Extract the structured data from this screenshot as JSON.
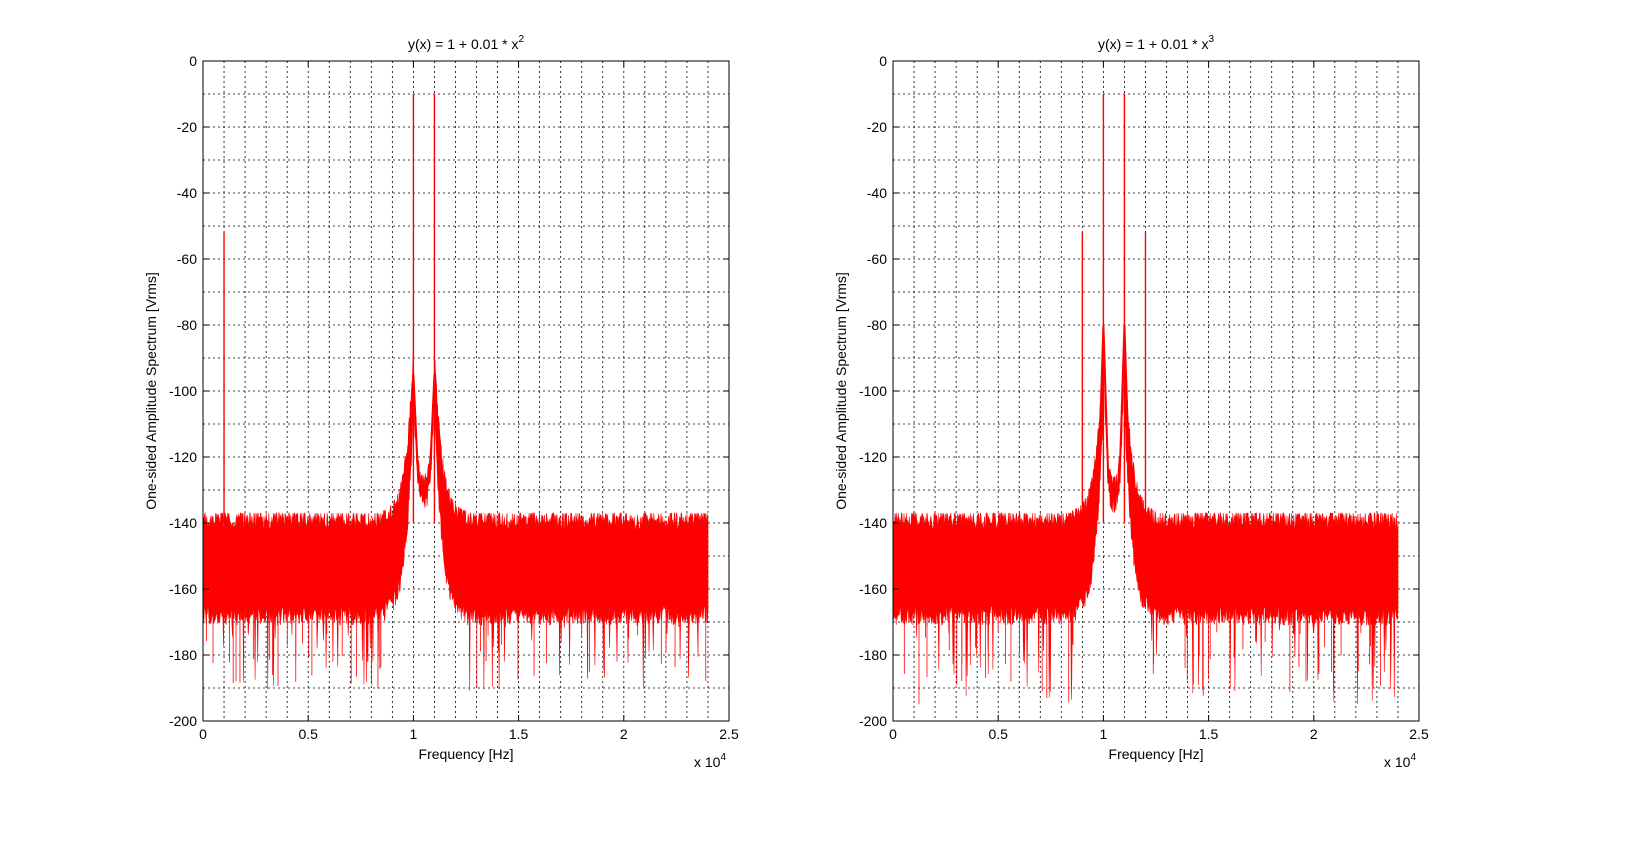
{
  "chart_data": [
    {
      "type": "line",
      "title": "y(x) = 1 + 0.01 * x",
      "title_superscript": "2",
      "xlabel": "Frequency [Hz]",
      "ylabel": "One-sided Amplitude Spectrum [Vrms]",
      "x_exponent_label": "x 10",
      "x_exponent_power": "4",
      "xlim": [
        0,
        2.5
      ],
      "ylim": [
        -200,
        0
      ],
      "x_ticks": [
        0,
        0.5,
        1,
        1.5,
        2,
        2.5
      ],
      "x_tick_labels": [
        "0",
        "0.5",
        "1",
        "1.5",
        "2",
        "2.5"
      ],
      "y_ticks": [
        0,
        -20,
        -40,
        -60,
        -80,
        -100,
        -120,
        -140,
        -160,
        -180,
        -200
      ],
      "y_tick_labels": [
        "0",
        "-20",
        "-40",
        "-60",
        "-80",
        "-100",
        "-120",
        "-140",
        "-160",
        "-180",
        "-200"
      ],
      "grid": true,
      "grid_style": "dotted",
      "line_color": "#ff0000",
      "x_range": [
        0,
        2.4
      ],
      "noise_floor_upper": -140,
      "noise_floor_lower": -165,
      "noise_dips_min": -191,
      "peaks": [
        {
          "x": 0.1,
          "y": -52
        },
        {
          "x": 1.0,
          "y": -10
        },
        {
          "x": 1.1,
          "y": -10
        }
      ],
      "skirt_peaks": [
        {
          "x": 1.0,
          "y": -95
        },
        {
          "x": 1.1,
          "y": -95
        }
      ],
      "valley_between_peaks": {
        "x": 1.05,
        "y": -128
      }
    },
    {
      "type": "line",
      "title": "y(x) = 1 + 0.01 * x",
      "title_superscript": "3",
      "xlabel": "Frequency [Hz]",
      "ylabel": "One-sided Amplitude Spectrum [Vrms]",
      "x_exponent_label": "x 10",
      "x_exponent_power": "4",
      "xlim": [
        0,
        2.5
      ],
      "ylim": [
        -200,
        0
      ],
      "x_ticks": [
        0,
        0.5,
        1,
        1.5,
        2,
        2.5
      ],
      "x_tick_labels": [
        "0",
        "0.5",
        "1",
        "1.5",
        "2",
        "2.5"
      ],
      "y_ticks": [
        0,
        -20,
        -40,
        -60,
        -80,
        -100,
        -120,
        -140,
        -160,
        -180,
        -200
      ],
      "y_tick_labels": [
        "0",
        "-20",
        "-40",
        "-60",
        "-80",
        "-100",
        "-120",
        "-140",
        "-160",
        "-180",
        "-200"
      ],
      "grid": true,
      "grid_style": "dotted",
      "line_color": "#ff0000",
      "x_range": [
        0,
        2.4
      ],
      "noise_floor_upper": -140,
      "noise_floor_lower": -165,
      "noise_dips_min": -195,
      "peaks": [
        {
          "x": 0.9,
          "y": -52
        },
        {
          "x": 1.0,
          "y": -10
        },
        {
          "x": 1.1,
          "y": -10
        },
        {
          "x": 1.2,
          "y": -52
        }
      ],
      "skirt_peaks": [
        {
          "x": 1.0,
          "y": -80
        },
        {
          "x": 1.1,
          "y": -80
        }
      ],
      "valley_between_peaks": {
        "x": 1.05,
        "y": -129
      }
    }
  ]
}
